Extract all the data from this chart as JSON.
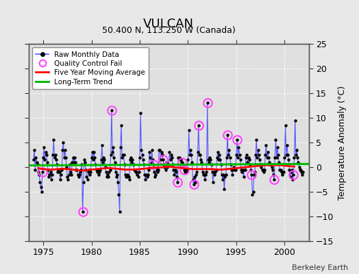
{
  "title": "VULCAN",
  "subtitle": "50.400 N, 113.250 W (Canada)",
  "ylabel": "Temperature Anomaly (°C)",
  "credit": "Berkeley Earth",
  "xlim": [
    1973.5,
    2002.5
  ],
  "ylim": [
    -15,
    25
  ],
  "yticks": [
    -15,
    -10,
    -5,
    0,
    5,
    10,
    15,
    20,
    25
  ],
  "xticks": [
    1975,
    1980,
    1985,
    1990,
    1995,
    2000
  ],
  "fig_bg_color": "#e8e8e8",
  "plot_bg_color": "#e0e0e0",
  "grid_color": "#ffffff",
  "raw_line_color": "#5555ff",
  "raw_dot_color": "#000000",
  "qc_fail_color": "#ff44ff",
  "moving_avg_color": "#ff0000",
  "trend_color": "#00bb00",
  "raw_data": [
    [
      1974.0,
      1.5
    ],
    [
      1974.083,
      3.5
    ],
    [
      1974.167,
      -0.5
    ],
    [
      1974.25,
      2.0
    ],
    [
      1974.333,
      1.0
    ],
    [
      1974.417,
      0.5
    ],
    [
      1974.5,
      -1.0
    ],
    [
      1974.583,
      -1.5
    ],
    [
      1974.667,
      -3.0
    ],
    [
      1974.75,
      -4.0
    ],
    [
      1974.833,
      -5.0
    ],
    [
      1974.917,
      -1.0
    ],
    [
      1975.0,
      2.0
    ],
    [
      1975.083,
      4.0
    ],
    [
      1975.167,
      1.5
    ],
    [
      1975.25,
      3.0
    ],
    [
      1975.333,
      2.5
    ],
    [
      1975.417,
      1.0
    ],
    [
      1975.5,
      -0.5
    ],
    [
      1975.583,
      -2.0
    ],
    [
      1975.667,
      -1.5
    ],
    [
      1975.75,
      -1.0
    ],
    [
      1975.833,
      -2.5
    ],
    [
      1975.917,
      -1.5
    ],
    [
      1976.0,
      2.5
    ],
    [
      1976.083,
      5.5
    ],
    [
      1976.167,
      2.0
    ],
    [
      1976.25,
      2.5
    ],
    [
      1976.333,
      1.5
    ],
    [
      1976.417,
      0.5
    ],
    [
      1976.5,
      -1.0
    ],
    [
      1976.583,
      -0.5
    ],
    [
      1976.667,
      -1.0
    ],
    [
      1976.75,
      -2.5
    ],
    [
      1976.833,
      -1.5
    ],
    [
      1976.917,
      -0.5
    ],
    [
      1977.0,
      3.5
    ],
    [
      1977.083,
      5.0
    ],
    [
      1977.167,
      2.0
    ],
    [
      1977.25,
      3.5
    ],
    [
      1977.333,
      2.0
    ],
    [
      1977.417,
      0.0
    ],
    [
      1977.5,
      -2.0
    ],
    [
      1977.583,
      -2.5
    ],
    [
      1977.667,
      -1.5
    ],
    [
      1977.75,
      0.5
    ],
    [
      1977.833,
      -1.0
    ],
    [
      1977.917,
      -1.5
    ],
    [
      1978.0,
      1.0
    ],
    [
      1978.083,
      2.0
    ],
    [
      1978.167,
      1.0
    ],
    [
      1978.25,
      2.0
    ],
    [
      1978.333,
      1.0
    ],
    [
      1978.417,
      -0.5
    ],
    [
      1978.5,
      -0.5
    ],
    [
      1978.583,
      -1.5
    ],
    [
      1978.667,
      -2.0
    ],
    [
      1978.75,
      -1.5
    ],
    [
      1978.833,
      -1.0
    ],
    [
      1978.917,
      -0.5
    ],
    [
      1979.0,
      0.5
    ],
    [
      1979.083,
      -9.0
    ],
    [
      1979.167,
      -3.0
    ],
    [
      1979.25,
      1.5
    ],
    [
      1979.333,
      1.0
    ],
    [
      1979.417,
      -0.5
    ],
    [
      1979.5,
      -2.0
    ],
    [
      1979.583,
      -2.5
    ],
    [
      1979.667,
      -1.0
    ],
    [
      1979.75,
      -0.5
    ],
    [
      1979.833,
      -1.5
    ],
    [
      1979.917,
      -1.0
    ],
    [
      1980.0,
      2.0
    ],
    [
      1980.083,
      3.0
    ],
    [
      1980.167,
      1.5
    ],
    [
      1980.25,
      3.0
    ],
    [
      1980.333,
      2.0
    ],
    [
      1980.417,
      0.5
    ],
    [
      1980.5,
      -0.5
    ],
    [
      1980.583,
      -1.0
    ],
    [
      1980.667,
      -0.5
    ],
    [
      1980.75,
      -1.5
    ],
    [
      1980.833,
      -1.0
    ],
    [
      1980.917,
      -0.5
    ],
    [
      1981.0,
      1.5
    ],
    [
      1981.083,
      4.5
    ],
    [
      1981.167,
      1.0
    ],
    [
      1981.25,
      2.0
    ],
    [
      1981.333,
      1.5
    ],
    [
      1981.417,
      0.0
    ],
    [
      1981.5,
      -1.0
    ],
    [
      1981.583,
      -2.0
    ],
    [
      1981.667,
      -1.5
    ],
    [
      1981.75,
      -2.0
    ],
    [
      1981.833,
      -1.0
    ],
    [
      1981.917,
      -0.5
    ],
    [
      1982.0,
      2.5
    ],
    [
      1982.083,
      11.5
    ],
    [
      1982.167,
      3.0
    ],
    [
      1982.25,
      4.0
    ],
    [
      1982.333,
      2.0
    ],
    [
      1982.417,
      1.0
    ],
    [
      1982.5,
      -1.0
    ],
    [
      1982.583,
      -2.0
    ],
    [
      1982.667,
      -1.5
    ],
    [
      1982.75,
      -3.0
    ],
    [
      1982.833,
      -5.5
    ],
    [
      1982.917,
      -9.0
    ],
    [
      1983.0,
      4.0
    ],
    [
      1983.083,
      8.5
    ],
    [
      1983.167,
      2.0
    ],
    [
      1983.25,
      2.5
    ],
    [
      1983.333,
      2.5
    ],
    [
      1983.417,
      0.5
    ],
    [
      1983.5,
      -1.5
    ],
    [
      1983.583,
      -2.0
    ],
    [
      1983.667,
      -2.0
    ],
    [
      1983.75,
      -1.5
    ],
    [
      1983.833,
      -2.0
    ],
    [
      1983.917,
      -2.5
    ],
    [
      1984.0,
      1.5
    ],
    [
      1984.083,
      2.0
    ],
    [
      1984.167,
      1.0
    ],
    [
      1984.25,
      1.5
    ],
    [
      1984.333,
      0.5
    ],
    [
      1984.417,
      -0.5
    ],
    [
      1984.5,
      -0.5
    ],
    [
      1984.583,
      -1.0
    ],
    [
      1984.667,
      -1.0
    ],
    [
      1984.75,
      -1.5
    ],
    [
      1984.833,
      -2.0
    ],
    [
      1984.917,
      -1.0
    ],
    [
      1985.0,
      2.0
    ],
    [
      1985.083,
      11.0
    ],
    [
      1985.167,
      3.5
    ],
    [
      1985.25,
      2.5
    ],
    [
      1985.333,
      1.5
    ],
    [
      1985.417,
      0.5
    ],
    [
      1985.5,
      -1.5
    ],
    [
      1985.583,
      -2.5
    ],
    [
      1985.667,
      -1.5
    ],
    [
      1985.75,
      -2.0
    ],
    [
      1985.833,
      -1.5
    ],
    [
      1985.917,
      -0.5
    ],
    [
      1986.0,
      3.0
    ],
    [
      1986.083,
      2.0
    ],
    [
      1986.167,
      1.0
    ],
    [
      1986.25,
      3.5
    ],
    [
      1986.333,
      1.5
    ],
    [
      1986.417,
      0.5
    ],
    [
      1986.5,
      -1.0
    ],
    [
      1986.583,
      -2.0
    ],
    [
      1986.667,
      -1.5
    ],
    [
      1986.75,
      -0.5
    ],
    [
      1986.833,
      -1.0
    ],
    [
      1986.917,
      -0.5
    ],
    [
      1987.0,
      3.5
    ],
    [
      1987.083,
      3.5
    ],
    [
      1987.167,
      1.5
    ],
    [
      1987.25,
      3.0
    ],
    [
      1987.333,
      2.5
    ],
    [
      1987.417,
      1.5
    ],
    [
      1987.5,
      0.5
    ],
    [
      1987.583,
      0.0
    ],
    [
      1987.667,
      -0.5
    ],
    [
      1987.75,
      1.0
    ],
    [
      1987.833,
      0.0
    ],
    [
      1987.917,
      0.5
    ],
    [
      1988.0,
      0.5
    ],
    [
      1988.083,
      3.0
    ],
    [
      1988.167,
      1.5
    ],
    [
      1988.25,
      2.5
    ],
    [
      1988.333,
      2.0
    ],
    [
      1988.417,
      0.5
    ],
    [
      1988.5,
      -0.5
    ],
    [
      1988.583,
      -1.5
    ],
    [
      1988.667,
      -0.5
    ],
    [
      1988.75,
      -1.0
    ],
    [
      1988.833,
      -2.0
    ],
    [
      1988.917,
      -3.0
    ],
    [
      1989.0,
      2.0
    ],
    [
      1989.083,
      2.0
    ],
    [
      1989.167,
      1.5
    ],
    [
      1989.25,
      1.5
    ],
    [
      1989.333,
      1.0
    ],
    [
      1989.417,
      1.0
    ],
    [
      1989.5,
      0.5
    ],
    [
      1989.583,
      -0.5
    ],
    [
      1989.667,
      -1.0
    ],
    [
      1989.75,
      -0.5
    ],
    [
      1989.833,
      -1.0
    ],
    [
      1989.917,
      -0.5
    ],
    [
      1990.0,
      1.5
    ],
    [
      1990.083,
      7.5
    ],
    [
      1990.167,
      2.5
    ],
    [
      1990.25,
      3.5
    ],
    [
      1990.333,
      2.5
    ],
    [
      1990.417,
      1.0
    ],
    [
      1990.5,
      -2.5
    ],
    [
      1990.583,
      -3.5
    ],
    [
      1990.667,
      -2.0
    ],
    [
      1990.75,
      -3.0
    ],
    [
      1990.833,
      -1.5
    ],
    [
      1990.917,
      -1.0
    ],
    [
      1991.0,
      3.0
    ],
    [
      1991.083,
      8.5
    ],
    [
      1991.167,
      2.5
    ],
    [
      1991.25,
      2.5
    ],
    [
      1991.333,
      1.5
    ],
    [
      1991.417,
      1.0
    ],
    [
      1991.5,
      -1.0
    ],
    [
      1991.583,
      -1.5
    ],
    [
      1991.667,
      -1.5
    ],
    [
      1991.75,
      -2.5
    ],
    [
      1991.833,
      -1.5
    ],
    [
      1991.917,
      -1.0
    ],
    [
      1992.0,
      13.0
    ],
    [
      1992.083,
      1.5
    ],
    [
      1992.167,
      1.0
    ],
    [
      1992.25,
      2.0
    ],
    [
      1992.333,
      1.5
    ],
    [
      1992.417,
      0.5
    ],
    [
      1992.5,
      -1.0
    ],
    [
      1992.583,
      -3.0
    ],
    [
      1992.667,
      -1.0
    ],
    [
      1992.75,
      -1.5
    ],
    [
      1992.833,
      -1.0
    ],
    [
      1992.917,
      -0.5
    ],
    [
      1993.0,
      2.0
    ],
    [
      1993.083,
      3.0
    ],
    [
      1993.167,
      1.5
    ],
    [
      1993.25,
      2.5
    ],
    [
      1993.333,
      1.5
    ],
    [
      1993.417,
      0.5
    ],
    [
      1993.5,
      -1.5
    ],
    [
      1993.583,
      -2.5
    ],
    [
      1993.667,
      -1.5
    ],
    [
      1993.75,
      -4.5
    ],
    [
      1993.833,
      -2.0
    ],
    [
      1993.917,
      -1.5
    ],
    [
      1994.0,
      2.0
    ],
    [
      1994.083,
      6.5
    ],
    [
      1994.167,
      2.5
    ],
    [
      1994.25,
      3.5
    ],
    [
      1994.333,
      2.0
    ],
    [
      1994.417,
      0.5
    ],
    [
      1994.5,
      -0.5
    ],
    [
      1994.583,
      -1.5
    ],
    [
      1994.667,
      -0.5
    ],
    [
      1994.75,
      0.0
    ],
    [
      1994.833,
      -0.5
    ],
    [
      1994.917,
      -0.5
    ],
    [
      1995.0,
      2.5
    ],
    [
      1995.083,
      5.5
    ],
    [
      1995.167,
      2.0
    ],
    [
      1995.25,
      4.0
    ],
    [
      1995.333,
      2.5
    ],
    [
      1995.417,
      1.5
    ],
    [
      1995.5,
      -0.5
    ],
    [
      1995.583,
      -1.0
    ],
    [
      1995.667,
      -0.5
    ],
    [
      1995.75,
      -2.0
    ],
    [
      1995.833,
      -0.5
    ],
    [
      1995.917,
      -0.5
    ],
    [
      1996.0,
      2.0
    ],
    [
      1996.083,
      2.5
    ],
    [
      1996.167,
      1.0
    ],
    [
      1996.25,
      2.0
    ],
    [
      1996.333,
      1.5
    ],
    [
      1996.417,
      0.5
    ],
    [
      1996.5,
      -0.5
    ],
    [
      1996.583,
      -1.5
    ],
    [
      1996.667,
      -5.5
    ],
    [
      1996.75,
      -5.0
    ],
    [
      1996.833,
      -1.5
    ],
    [
      1996.917,
      -1.0
    ],
    [
      1997.0,
      2.5
    ],
    [
      1997.083,
      5.5
    ],
    [
      1997.167,
      2.0
    ],
    [
      1997.25,
      3.5
    ],
    [
      1997.333,
      2.5
    ],
    [
      1997.417,
      1.5
    ],
    [
      1997.5,
      0.5
    ],
    [
      1997.583,
      0.0
    ],
    [
      1997.667,
      -0.5
    ],
    [
      1997.75,
      -0.5
    ],
    [
      1997.833,
      -1.0
    ],
    [
      1997.917,
      -0.5
    ],
    [
      1998.0,
      2.5
    ],
    [
      1998.083,
      4.5
    ],
    [
      1998.167,
      2.0
    ],
    [
      1998.25,
      3.0
    ],
    [
      1998.333,
      2.0
    ],
    [
      1998.417,
      1.0
    ],
    [
      1998.5,
      0.5
    ],
    [
      1998.583,
      0.5
    ],
    [
      1998.667,
      0.0
    ],
    [
      1998.75,
      -0.5
    ],
    [
      1998.833,
      -1.5
    ],
    [
      1998.917,
      -2.5
    ],
    [
      1999.0,
      2.0
    ],
    [
      1999.083,
      5.5
    ],
    [
      1999.167,
      2.0
    ],
    [
      1999.25,
      4.0
    ],
    [
      1999.333,
      2.5
    ],
    [
      1999.417,
      1.0
    ],
    [
      1999.5,
      -0.5
    ],
    [
      1999.583,
      -0.5
    ],
    [
      1999.667,
      -1.0
    ],
    [
      1999.75,
      -1.5
    ],
    [
      1999.833,
      -1.0
    ],
    [
      1999.917,
      -1.0
    ],
    [
      2000.0,
      2.0
    ],
    [
      2000.083,
      8.5
    ],
    [
      2000.167,
      2.5
    ],
    [
      2000.25,
      4.5
    ],
    [
      2000.333,
      2.5
    ],
    [
      2000.417,
      1.5
    ],
    [
      2000.5,
      -0.5
    ],
    [
      2000.583,
      -2.0
    ],
    [
      2000.667,
      -1.0
    ],
    [
      2000.75,
      -0.5
    ],
    [
      2000.833,
      -2.5
    ],
    [
      2000.917,
      -1.5
    ],
    [
      2001.0,
      2.0
    ],
    [
      2001.083,
      9.5
    ],
    [
      2001.167,
      2.5
    ],
    [
      2001.25,
      3.5
    ],
    [
      2001.333,
      2.0
    ],
    [
      2001.417,
      1.0
    ],
    [
      2001.5,
      0.0
    ],
    [
      2001.583,
      -0.5
    ],
    [
      2001.667,
      -0.5
    ],
    [
      2001.75,
      -1.0
    ],
    [
      2001.833,
      -1.5
    ],
    [
      2001.917,
      -1.0
    ]
  ],
  "qc_fail_points": [
    [
      1974.917,
      -1.0
    ],
    [
      1979.083,
      -9.0
    ],
    [
      1982.083,
      11.5
    ],
    [
      1986.417,
      0.5
    ],
    [
      1987.417,
      1.5
    ],
    [
      1988.917,
      -3.0
    ],
    [
      1989.417,
      1.0
    ],
    [
      1989.583,
      -0.5
    ],
    [
      1990.583,
      -3.5
    ],
    [
      1991.083,
      8.5
    ],
    [
      1992.0,
      13.0
    ],
    [
      1994.083,
      6.5
    ],
    [
      1995.083,
      5.5
    ],
    [
      1996.583,
      -1.5
    ],
    [
      1998.917,
      -2.5
    ],
    [
      2000.917,
      -1.5
    ]
  ],
  "five_year_avg": [
    [
      1974.5,
      -0.2
    ],
    [
      1975.0,
      -0.4
    ],
    [
      1975.5,
      -0.5
    ],
    [
      1976.0,
      -0.5
    ],
    [
      1976.5,
      -0.4
    ],
    [
      1977.0,
      -0.3
    ],
    [
      1977.5,
      -0.4
    ],
    [
      1978.0,
      -0.5
    ],
    [
      1978.5,
      -0.6
    ],
    [
      1979.0,
      -0.7
    ],
    [
      1979.5,
      -0.6
    ],
    [
      1980.0,
      -0.5
    ],
    [
      1980.5,
      -0.4
    ],
    [
      1981.0,
      -0.3
    ],
    [
      1981.5,
      -0.2
    ],
    [
      1982.0,
      -0.2
    ],
    [
      1982.5,
      -0.3
    ],
    [
      1983.0,
      -0.4
    ],
    [
      1983.5,
      -0.5
    ],
    [
      1984.0,
      -0.5
    ],
    [
      1984.5,
      -0.5
    ],
    [
      1985.0,
      -0.4
    ],
    [
      1985.5,
      -0.3
    ],
    [
      1986.0,
      -0.2
    ],
    [
      1986.5,
      -0.1
    ],
    [
      1987.0,
      -0.1
    ],
    [
      1987.5,
      0.0
    ],
    [
      1988.0,
      0.1
    ],
    [
      1988.5,
      0.0
    ],
    [
      1989.0,
      -0.1
    ],
    [
      1989.5,
      -0.2
    ],
    [
      1990.0,
      -0.3
    ],
    [
      1990.5,
      -0.4
    ],
    [
      1991.0,
      -0.4
    ],
    [
      1991.5,
      -0.4
    ],
    [
      1992.0,
      -0.4
    ],
    [
      1992.5,
      -0.4
    ],
    [
      1993.0,
      -0.5
    ],
    [
      1993.5,
      -0.5
    ],
    [
      1994.0,
      -0.4
    ],
    [
      1994.5,
      -0.3
    ],
    [
      1995.0,
      -0.2
    ],
    [
      1995.5,
      -0.1
    ],
    [
      1996.0,
      0.0
    ],
    [
      1996.5,
      0.1
    ],
    [
      1997.0,
      0.2
    ],
    [
      1997.5,
      0.3
    ],
    [
      1998.0,
      0.4
    ],
    [
      1998.5,
      0.4
    ],
    [
      1999.0,
      0.4
    ],
    [
      1999.5,
      0.4
    ],
    [
      2000.0,
      0.3
    ],
    [
      2000.5,
      0.2
    ],
    [
      2001.0,
      0.1
    ]
  ],
  "trend_x": [
    1973.5,
    2002.5
  ],
  "trend_y": [
    0.35,
    0.65
  ]
}
